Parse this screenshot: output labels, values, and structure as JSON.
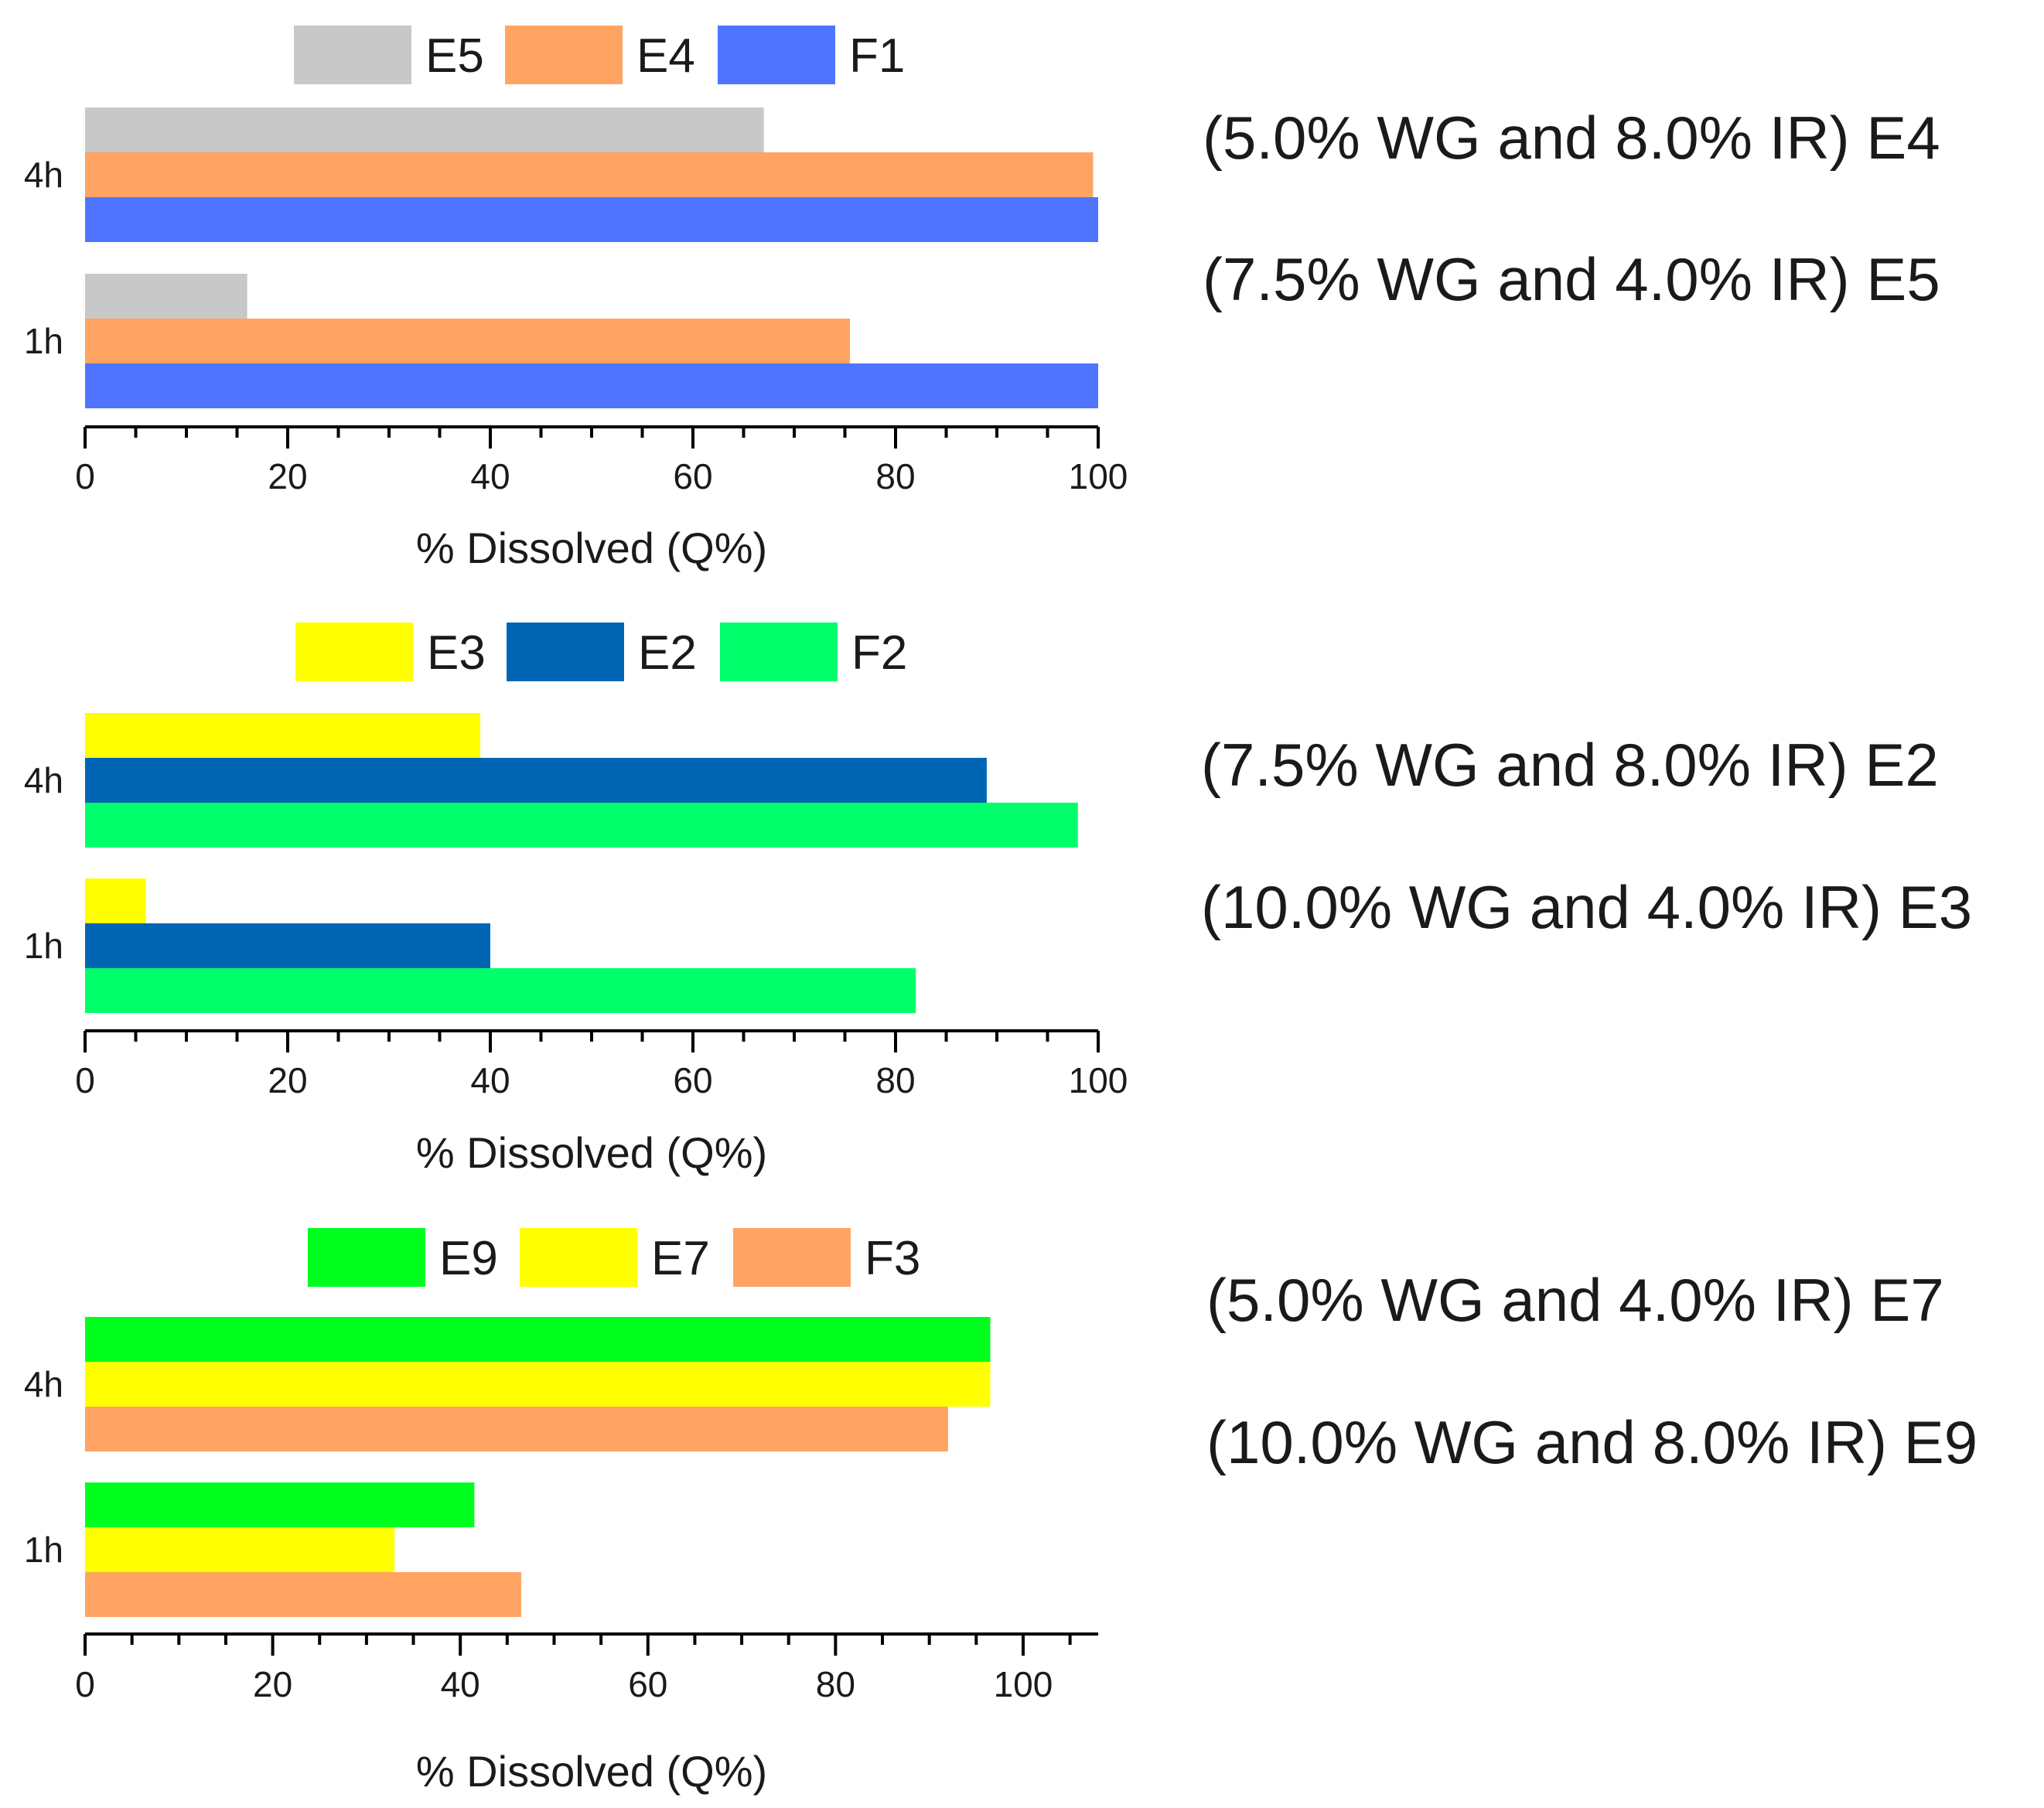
{
  "chart_data": [
    {
      "type": "bar",
      "orientation": "horizontal",
      "categories": [
        "4h",
        "1h"
      ],
      "series": [
        {
          "name": "E5",
          "color": "#c8c8c8",
          "values": [
            67,
            16
          ]
        },
        {
          "name": "E4",
          "color": "#ffa462",
          "values": [
            99.5,
            75.5
          ]
        },
        {
          "name": "F1",
          "color": "#4f74ff",
          "values": [
            100,
            100
          ]
        }
      ],
      "xlabel": "% Dissolved (Q%)",
      "xlim": [
        0,
        100
      ],
      "xticks": [
        "0",
        "20",
        "40",
        "60",
        "80",
        "100"
      ],
      "legend_position": "top",
      "annotations": [
        "(5.0% WG and 8.0% IR) E4",
        "(7.5% WG and 4.0% IR) E5"
      ]
    },
    {
      "type": "bar",
      "orientation": "horizontal",
      "categories": [
        "4h",
        "1h"
      ],
      "series": [
        {
          "name": "E3",
          "color": "#ffff00",
          "values": [
            39,
            6
          ]
        },
        {
          "name": "E2",
          "color": "#0066b3",
          "values": [
            89,
            40
          ]
        },
        {
          "name": "F2",
          "color": "#00ff6a",
          "values": [
            98,
            82
          ]
        }
      ],
      "xlabel": "% Dissolved (Q%)",
      "xlim": [
        0,
        100
      ],
      "xticks": [
        "0",
        "20",
        "40",
        "60",
        "80",
        "100"
      ],
      "legend_position": "top",
      "annotations": [
        "(7.5% WG and 8.0% IR) E2",
        "(10.0% WG and 4.0% IR) E3"
      ]
    },
    {
      "type": "bar",
      "orientation": "horizontal",
      "categories": [
        "4h",
        "1h"
      ],
      "series": [
        {
          "name": "E9",
          "color": "#00ff1e",
          "values": [
            96.5,
            41.5
          ]
        },
        {
          "name": "E7",
          "color": "#ffff00",
          "values": [
            96.5,
            33
          ]
        },
        {
          "name": "F3",
          "color": "#ffa462",
          "values": [
            92,
            46.5
          ]
        }
      ],
      "xlabel": "% Dissolved (Q%)",
      "xlim": [
        0,
        108
      ],
      "xticks": [
        "0",
        "20",
        "40",
        "60",
        "80",
        "100"
      ],
      "legend_position": "top",
      "annotations": [
        "(5.0% WG and 4.0% IR) E7",
        "(10.0%  WG and 8.0% IR) E9"
      ]
    }
  ]
}
